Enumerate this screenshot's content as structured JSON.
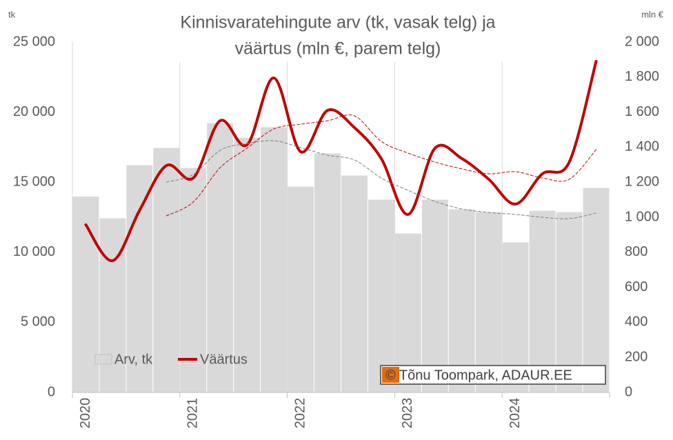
{
  "chart_data": {
    "type": "bar-line",
    "title_lines": [
      "Kinnisvaratehingute arv (tk, vasak telg) ja",
      "väärtus (mln €, parem telg)"
    ],
    "y_unit": "tk",
    "y2_unit": "mln €",
    "annotation": "© Tõnu Toompark, ADAUR.EE",
    "categories": [
      "2020",
      null,
      null,
      null,
      "2021",
      null,
      null,
      null,
      "2022",
      null,
      null,
      null,
      "2023",
      null,
      null,
      null,
      "2024",
      null,
      null,
      null
    ],
    "series": [
      {
        "name": "Arv, tk",
        "type": "bar",
        "color": "#d9d9d9",
        "axis": "y",
        "values": [
          14000,
          12450,
          16240,
          17470,
          16040,
          19240,
          18200,
          18950,
          14710,
          17080,
          15500,
          13780,
          11370,
          13780,
          13090,
          12890,
          10730,
          12990,
          12890,
          14620
        ]
      },
      {
        "name": "Väärtus",
        "type": "line",
        "color": "#c00000",
        "axis": "y2",
        "values": [
          957,
          752,
          1039,
          1295,
          1224,
          1551,
          1413,
          1795,
          1374,
          1610,
          1512,
          1335,
          1016,
          1394,
          1335,
          1217,
          1075,
          1248,
          1315,
          1890
        ]
      },
      {
        "type": "dashed-line",
        "color": "#c00000",
        "axis": "y2",
        "values": [
          null,
          null,
          null,
          1008,
          1087,
          1283,
          1394,
          1504,
          1531,
          1551,
          1579,
          1433,
          1366,
          1315,
          1276,
          1248,
          1260,
          1224,
          1217,
          1386
        ]
      },
      {
        "type": "dashed-line",
        "color": "#7f7f7f",
        "axis": "y",
        "values": [
          null,
          null,
          null,
          15010,
          15550,
          17270,
          17760,
          17960,
          17470,
          16930,
          16590,
          15300,
          14420,
          13630,
          13090,
          12840,
          12700,
          12500,
          12400,
          12800
        ]
      }
    ],
    "ylim": [
      0,
      25000
    ],
    "yticks": [
      0,
      {
        "value": 5000,
        "label": "5 000"
      },
      {
        "value": 10000,
        "label": "10 000"
      },
      {
        "value": 15000,
        "label": "15 000"
      },
      {
        "value": 20000,
        "label": "20 000"
      },
      {
        "value": 25000,
        "label": "25 000"
      }
    ],
    "y2lim": [
      0,
      2000
    ],
    "y2ticks": [
      0,
      200,
      400,
      600,
      800,
      {
        "value": 1000,
        "label": "1 000"
      },
      {
        "value": 1200,
        "label": "1 200"
      },
      {
        "value": 1400,
        "label": "1 400"
      },
      {
        "value": 1600,
        "label": "1 600"
      },
      {
        "value": 1800,
        "label": "1 800"
      },
      {
        "value": 2000,
        "label": "2 000"
      }
    ],
    "legend": "lower left"
  }
}
